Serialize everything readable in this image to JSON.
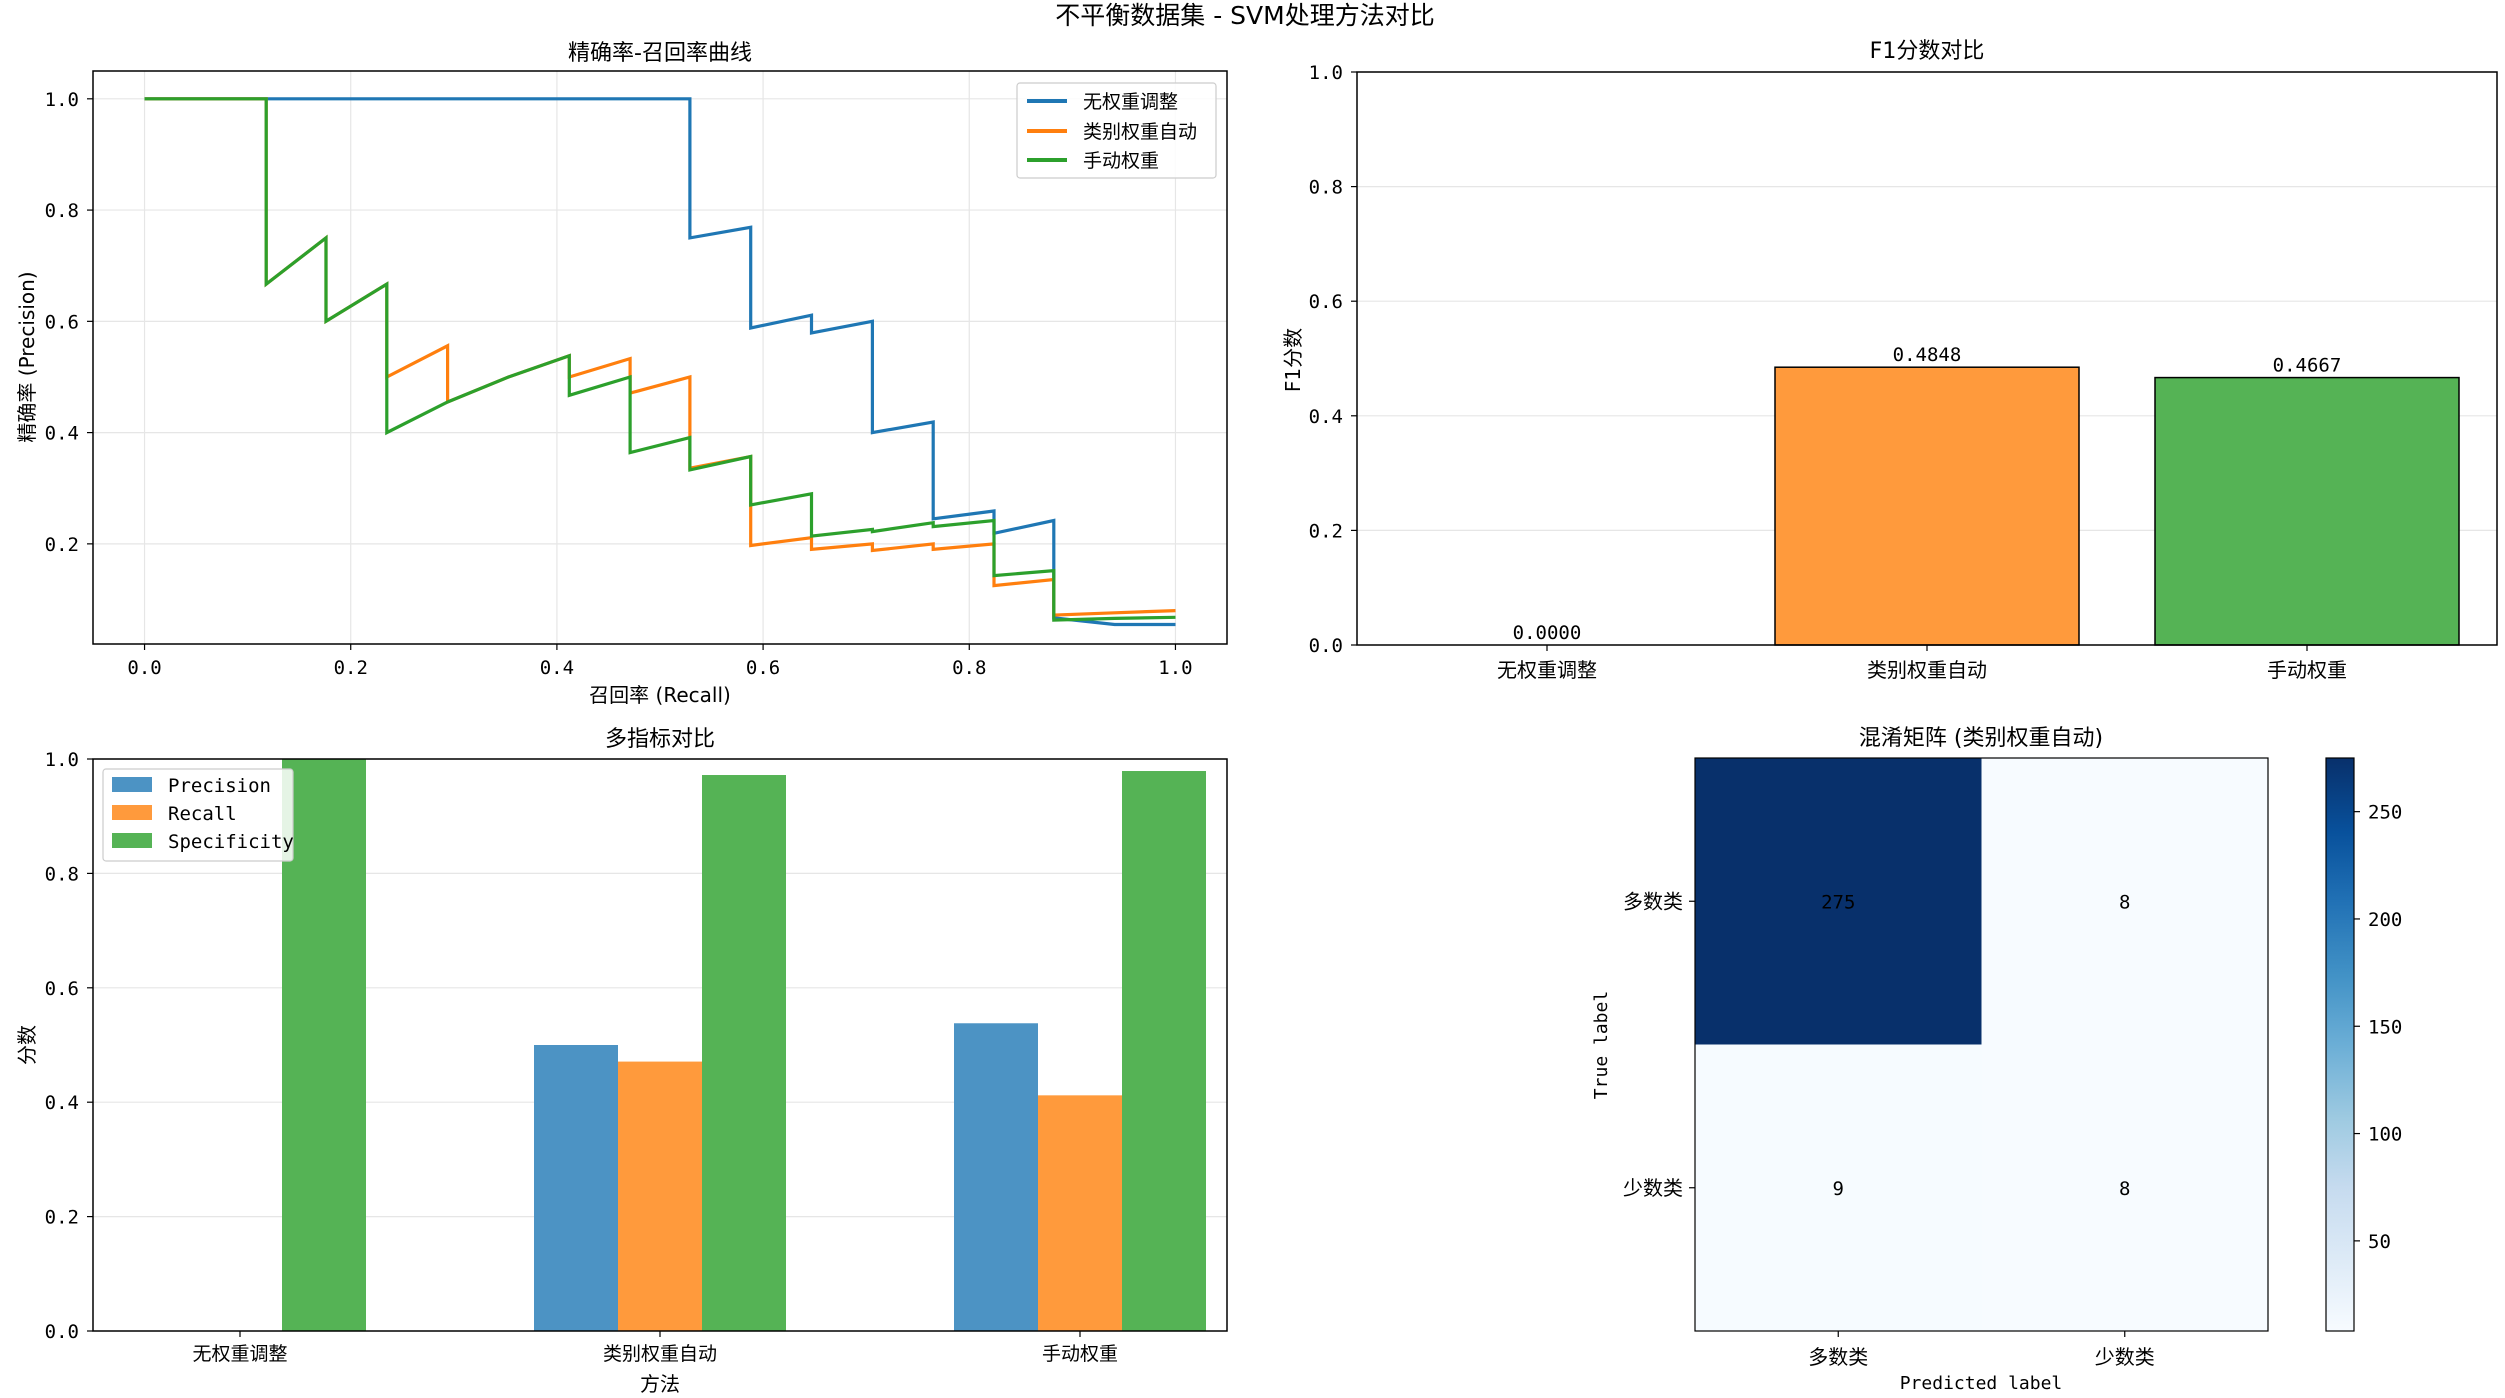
{
  "suptitle": "不平衡数据集 - SVM处理方法对比",
  "colors": {
    "blue": "#1f77b4",
    "orange": "#ff7f0e",
    "green": "#2ca02c",
    "bar_blue": "#4c93c4",
    "bar_orange": "#ff9a3c",
    "bar_green": "#55b355"
  },
  "chart_data": [
    {
      "type": "line",
      "title": "精确率-召回率曲线",
      "xlabel": "召回率 (Recall)",
      "ylabel": "精确率 (Precision)",
      "xlim": [
        -0.05,
        1.05
      ],
      "ylim": [
        0.02,
        1.05
      ],
      "xticks": [
        0.0,
        0.2,
        0.4,
        0.6,
        0.8,
        1.0
      ],
      "xtick_labels": [
        "0.0",
        "0.2",
        "0.4",
        "0.6",
        "0.8",
        "1.0"
      ],
      "yticks": [
        0.2,
        0.4,
        0.6,
        0.8,
        1.0
      ],
      "ytick_labels": [
        "0.2",
        "0.4",
        "0.6",
        "0.8",
        "1.0"
      ],
      "grid": true,
      "legend": "top-right",
      "series": [
        {
          "name": "无权重调整",
          "color": "#1f77b4",
          "x": [
            0.0,
            0.529,
            0.529,
            0.588,
            0.588,
            0.647,
            0.647,
            0.706,
            0.706,
            0.765,
            0.765,
            0.824,
            0.824,
            0.882,
            0.882,
            0.941,
            1.0
          ],
          "y": [
            1.0,
            1.0,
            0.75,
            0.769,
            0.588,
            0.611,
            0.579,
            0.6,
            0.4,
            0.419,
            0.245,
            0.259,
            0.219,
            0.242,
            0.067,
            0.055,
            0.055
          ]
        },
        {
          "name": "类别权重自动",
          "color": "#ff7f0e",
          "x": [
            0.0,
            0.118,
            0.118,
            0.176,
            0.176,
            0.235,
            0.235,
            0.294,
            0.294,
            0.353,
            0.412,
            0.412,
            0.471,
            0.471,
            0.529,
            0.529,
            0.588,
            0.588,
            0.647,
            0.647,
            0.706,
            0.706,
            0.765,
            0.765,
            0.824,
            0.824,
            0.882,
            0.882,
            0.941,
            1.0
          ],
          "y": [
            1.0,
            1.0,
            0.667,
            0.75,
            0.6,
            0.667,
            0.5,
            0.556,
            0.455,
            0.5,
            0.538,
            0.5,
            0.533,
            0.471,
            0.5,
            0.336,
            0.357,
            0.197,
            0.211,
            0.19,
            0.2,
            0.188,
            0.2,
            0.19,
            0.2,
            0.125,
            0.136,
            0.072,
            0.076,
            0.08
          ]
        },
        {
          "name": "手动权重",
          "color": "#2ca02c",
          "x": [
            0.0,
            0.118,
            0.118,
            0.176,
            0.176,
            0.235,
            0.235,
            0.294,
            0.353,
            0.412,
            0.412,
            0.471,
            0.471,
            0.529,
            0.529,
            0.588,
            0.588,
            0.647,
            0.647,
            0.706,
            0.706,
            0.765,
            0.765,
            0.824,
            0.824,
            0.882,
            0.882,
            0.941,
            1.0
          ],
          "y": [
            1.0,
            1.0,
            0.667,
            0.75,
            0.6,
            0.667,
            0.4,
            0.455,
            0.5,
            0.538,
            0.467,
            0.5,
            0.364,
            0.391,
            0.333,
            0.357,
            0.27,
            0.29,
            0.214,
            0.226,
            0.222,
            0.238,
            0.231,
            0.242,
            0.143,
            0.152,
            0.063,
            0.066,
            0.068
          ]
        }
      ]
    },
    {
      "type": "bar",
      "title": "F1分数对比",
      "xlabel": "",
      "ylabel": "F1分数",
      "ylim": [
        0,
        1.0
      ],
      "yticks": [
        0.0,
        0.2,
        0.4,
        0.6,
        0.8,
        1.0
      ],
      "ytick_labels": [
        "0.0",
        "0.2",
        "0.4",
        "0.6",
        "0.8",
        "1.0"
      ],
      "grid": true,
      "categories": [
        "无权重调整",
        "类别权重自动",
        "手动权重"
      ],
      "values": [
        0.0,
        0.4848,
        0.4667
      ],
      "value_labels": [
        "0.0000",
        "0.4848",
        "0.4667"
      ],
      "colors": [
        "#1f77b4",
        "#ff9a3c",
        "#55b355"
      ]
    },
    {
      "type": "bar",
      "title": "多指标对比",
      "xlabel": "方法",
      "ylabel": "分数",
      "ylim": [
        0,
        1.0
      ],
      "yticks": [
        0.0,
        0.2,
        0.4,
        0.6,
        0.8,
        1.0
      ],
      "ytick_labels": [
        "0.0",
        "0.2",
        "0.4",
        "0.6",
        "0.8",
        "1.0"
      ],
      "grid": true,
      "legend": "top-left",
      "categories": [
        "无权重调整",
        "类别权重自动",
        "手动权重"
      ],
      "series": [
        {
          "name": "Precision",
          "color": "#4c93c4",
          "values": [
            0.0,
            0.5,
            0.538
          ]
        },
        {
          "name": "Recall",
          "color": "#ff9a3c",
          "values": [
            0.0,
            0.471,
            0.412
          ]
        },
        {
          "name": "Specificity",
          "color": "#55b355",
          "values": [
            1.0,
            0.972,
            0.979
          ]
        }
      ]
    },
    {
      "type": "heatmap",
      "title": "混淆矩阵 (类别权重自动)",
      "xlabel": "Predicted label",
      "ylabel": "True label",
      "row_labels": [
        "多数类",
        "少数类"
      ],
      "col_labels": [
        "多数类",
        "少数类"
      ],
      "values": [
        [
          275,
          8
        ],
        [
          9,
          8
        ]
      ],
      "value_labels": [
        [
          "275",
          "8"
        ],
        [
          "9",
          "8"
        ]
      ],
      "colorbar_min": 8,
      "colorbar_max": 275,
      "colorbar_ticks": [
        50,
        100,
        150,
        200,
        250
      ],
      "colorbar_tick_labels": [
        "50",
        "100",
        "150",
        "200",
        "250"
      ]
    }
  ]
}
